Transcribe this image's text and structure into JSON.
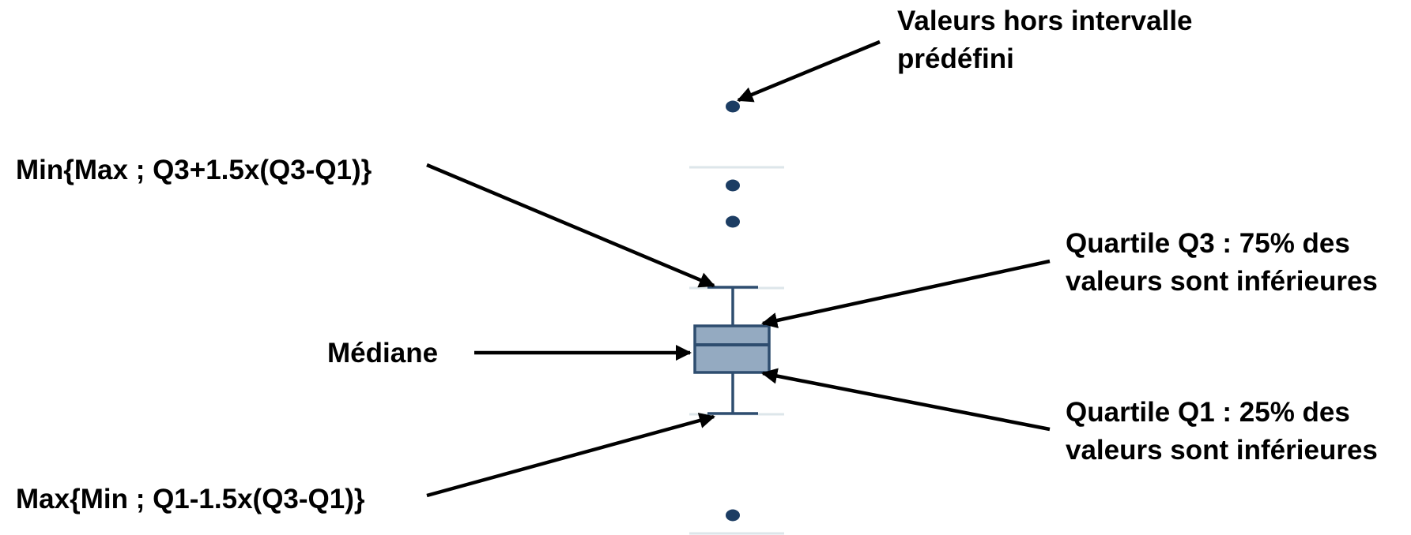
{
  "labels": {
    "outliers": [
      "Valeurs hors intervalle",
      "prédéfini"
    ],
    "upper_whisker": "Min{Max ; Q3+1.5x(Q3-Q1)}",
    "median": "Médiane",
    "q3": [
      "Quartile Q3 : 75% des",
      "valeurs sont inférieures"
    ],
    "q1": [
      "Quartile Q1 : 25% des",
      "valeurs sont inférieures"
    ],
    "lower_whisker": "Max{Min ; Q1-1.5x(Q3-Q1)}"
  },
  "colors": {
    "box_fill": "#94aac1",
    "box_stroke": "#2e4d6f",
    "outlier": "#1c3d63",
    "guide": "#dde6ea",
    "arrow": "#000000"
  }
}
